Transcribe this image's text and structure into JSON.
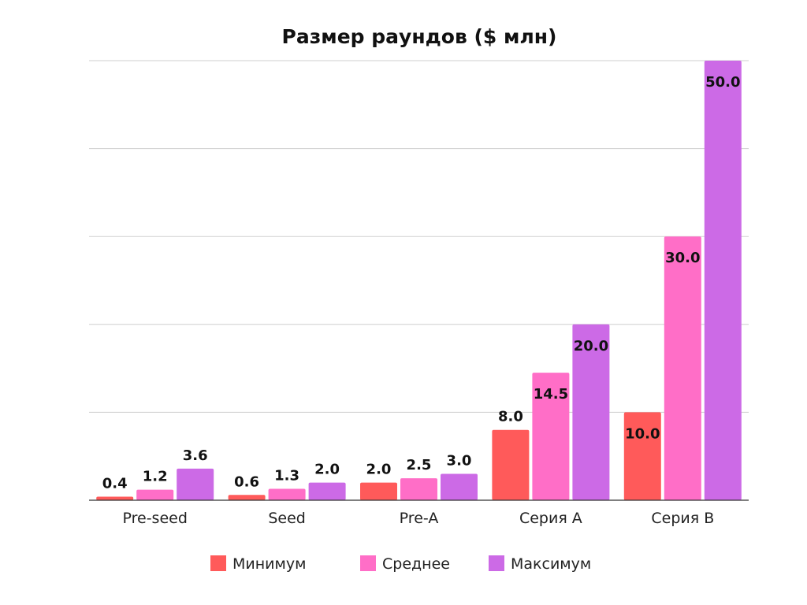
{
  "chart_data": {
    "type": "bar",
    "title": "Размер раундов ($ млн)",
    "xlabel": "",
    "ylabel": "",
    "categories": [
      "Pre-seed",
      "Seed",
      "Pre-A",
      "Серия A",
      "Серия B"
    ],
    "series": [
      {
        "name": "Минимум",
        "color": "#ff5a5a",
        "values": [
          0.4,
          0.6,
          2.0,
          8.0,
          10.0
        ],
        "labels": [
          "0.4",
          "0.6",
          "2.0",
          "8.0",
          "10.0"
        ]
      },
      {
        "name": "Среднее",
        "color": "#ff6ec7",
        "values": [
          1.2,
          1.3,
          2.5,
          14.5,
          30.0
        ],
        "labels": [
          "1.2",
          "1.3",
          "2.5",
          "14.5",
          "30.0"
        ]
      },
      {
        "name": "Максимум",
        "color": "#cc6ae6",
        "values": [
          3.6,
          2.0,
          3.0,
          20.0,
          50.0
        ],
        "labels": [
          "3.6",
          "2.0",
          "3.0",
          "20.0",
          "50.0"
        ]
      }
    ],
    "ylim": [
      0,
      50
    ],
    "y_gridlines": [
      0,
      10,
      20,
      30,
      40,
      50
    ],
    "y_tick_labels_visible": false,
    "grid": true,
    "legend_position": "bottom"
  }
}
